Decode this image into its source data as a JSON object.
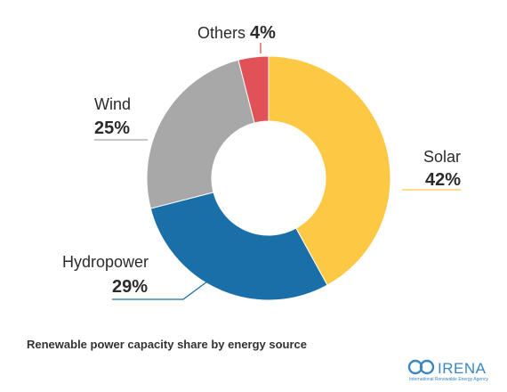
{
  "chart_data": {
    "type": "pie",
    "variant": "donut",
    "categories": [
      "Solar",
      "Hydropower",
      "Wind",
      "Others"
    ],
    "values": [
      42,
      29,
      25,
      4
    ],
    "value_labels": [
      "42%",
      "29%",
      "25%",
      "4%"
    ],
    "colors": [
      "#fdc843",
      "#1a6fa8",
      "#a8a8a8",
      "#e05258"
    ],
    "title": "Renewable power capacity share by energy source",
    "start_angle_deg": 0,
    "direction": "clockwise"
  },
  "branding": {
    "logo_text": "IRENA",
    "logo_subtext": "International Renewable Energy Agency"
  }
}
